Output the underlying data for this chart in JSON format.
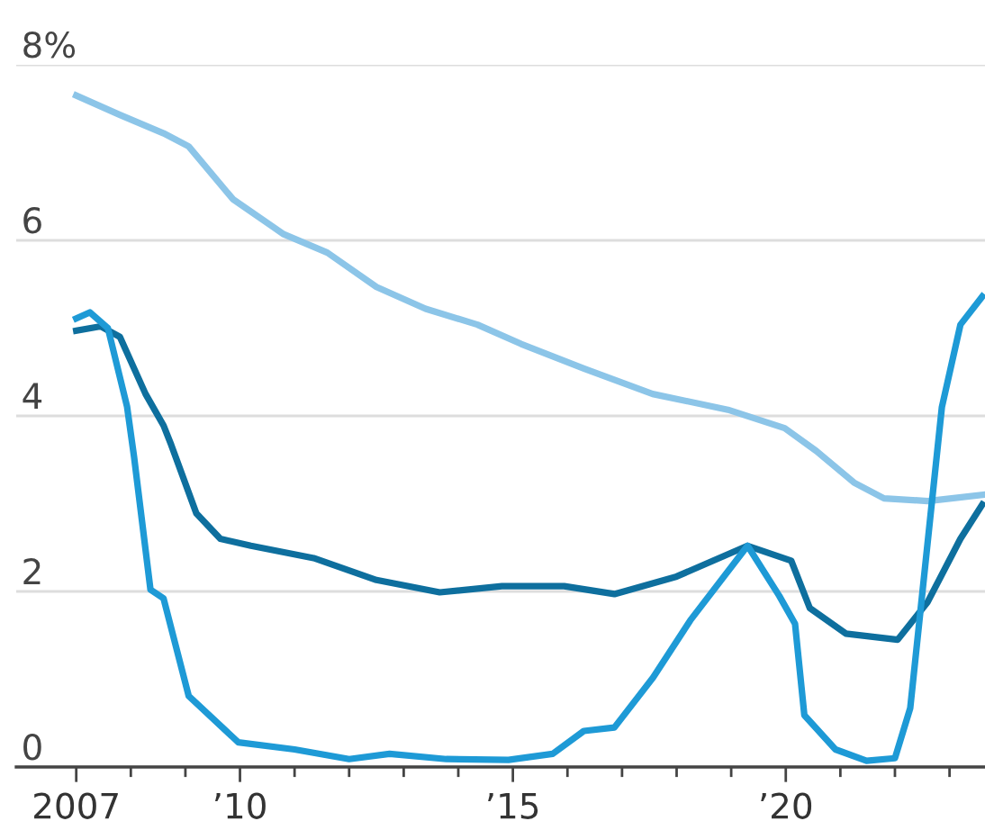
{
  "chart_data": {
    "type": "line",
    "xlim": [
      2005.9,
      2023.65
    ],
    "ylim": [
      0,
      8
    ],
    "xticks": [
      {
        "value": 2007,
        "label": "2007"
      },
      {
        "value": 2008,
        "label": null
      },
      {
        "value": 2009,
        "label": null
      },
      {
        "value": 2010,
        "label": "’10"
      },
      {
        "value": 2011,
        "label": null
      },
      {
        "value": 2012,
        "label": null
      },
      {
        "value": 2013,
        "label": null
      },
      {
        "value": 2014,
        "label": null
      },
      {
        "value": 2015,
        "label": "’15"
      },
      {
        "value": 2016,
        "label": null
      },
      {
        "value": 2017,
        "label": null
      },
      {
        "value": 2018,
        "label": null
      },
      {
        "value": 2019,
        "label": null
      },
      {
        "value": 2020,
        "label": "’20"
      },
      {
        "value": 2021,
        "label": null
      },
      {
        "value": 2022,
        "label": null
      },
      {
        "value": 2023,
        "label": null
      }
    ],
    "yticks": [
      0,
      2,
      4,
      6,
      {
        "value": 8,
        "label": "8%"
      }
    ],
    "grid": "y",
    "legend": false,
    "marker": "none",
    "line_style": "solid",
    "series": [
      {
        "color": "#8cc5e8",
        "x": [
          2007.0,
          2007.8,
          2008.6,
          2009.06,
          2009.87,
          2010.8,
          2011.6,
          2012.5,
          2013.4,
          2014.35,
          2015.15,
          2016.3,
          2017.56,
          2018.94,
          2019.98,
          2020.56,
          2021.25,
          2021.8,
          2022.6,
          2023.6
        ],
        "values": [
          7.65,
          7.43,
          7.22,
          7.07,
          6.47,
          6.07,
          5.86,
          5.47,
          5.22,
          5.04,
          4.82,
          4.54,
          4.25,
          4.07,
          3.86,
          3.6,
          3.24,
          3.06,
          3.03,
          3.1
        ]
      },
      {
        "color": "#0e6f9e",
        "x": [
          2007.0,
          2007.45,
          2007.8,
          2008.27,
          2008.6,
          2008.74,
          2009.2,
          2009.64,
          2010.2,
          2011.35,
          2012.5,
          2013.66,
          2014.8,
          2015.94,
          2016.86,
          2018.0,
          2019.3,
          2020.1,
          2020.44,
          2021.1,
          2022.05,
          2022.6,
          2023.2,
          2023.6
        ],
        "values": [
          4.97,
          5.02,
          4.9,
          4.25,
          3.89,
          3.67,
          2.89,
          2.6,
          2.52,
          2.38,
          2.13,
          1.99,
          2.06,
          2.06,
          1.97,
          2.17,
          2.52,
          2.35,
          1.81,
          1.52,
          1.45,
          1.88,
          2.6,
          2.99
        ]
      },
      {
        "color": "#1e9ad6",
        "x": [
          2007.0,
          2007.25,
          2007.58,
          2007.93,
          2008.06,
          2008.36,
          2008.6,
          2009.06,
          2009.97,
          2011.0,
          2012.0,
          2012.74,
          2013.78,
          2014.92,
          2015.73,
          2016.3,
          2016.86,
          2017.57,
          2018.25,
          2019.3,
          2019.88,
          2020.17,
          2020.34,
          2020.91,
          2021.48,
          2022.0,
          2022.28,
          2022.86,
          2023.2,
          2023.6
        ],
        "values": [
          5.11,
          5.18,
          5.0,
          4.11,
          3.53,
          2.02,
          1.92,
          0.81,
          0.28,
          0.2,
          0.09,
          0.15,
          0.09,
          0.08,
          0.15,
          0.41,
          0.45,
          1.02,
          1.67,
          2.52,
          1.95,
          1.63,
          0.59,
          0.2,
          0.07,
          0.1,
          0.67,
          4.1,
          5.04,
          5.36
        ]
      }
    ]
  }
}
